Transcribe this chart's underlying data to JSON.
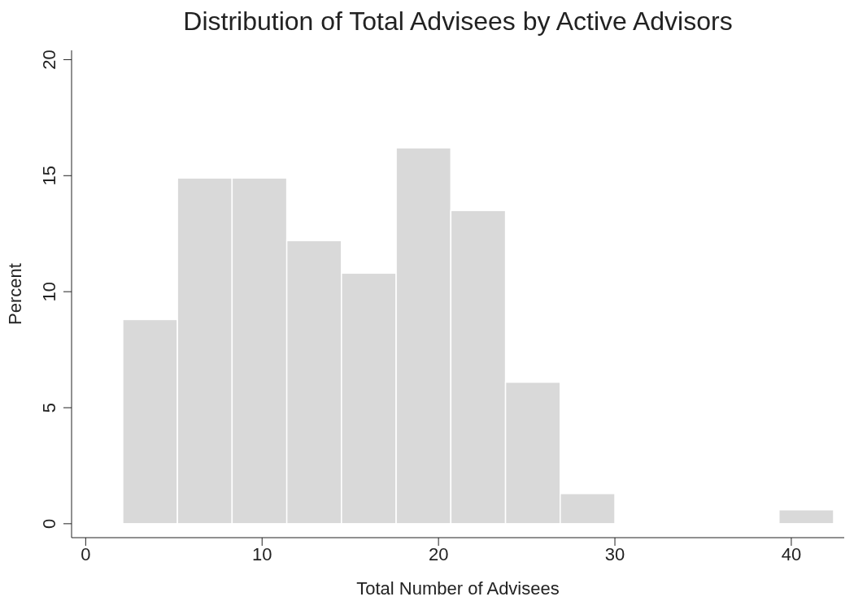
{
  "chart_data": {
    "type": "histogram",
    "title": "Distribution of Total Advisees by Active Advisors",
    "xlabel": "Total Number of Advisees",
    "ylabel": "Percent",
    "bins": [
      2.1,
      5.2,
      8.3,
      11.4,
      14.5,
      17.6,
      20.7,
      23.8,
      26.9,
      30,
      33.1,
      36.2,
      39.3,
      42.4
    ],
    "values": [
      8.8,
      14.9,
      14.9,
      12.2,
      10.8,
      16.2,
      13.5,
      6.1,
      1.3,
      0,
      0,
      0,
      0.6
    ],
    "color": "#d9d9d9",
    "xlim": [
      -0.8,
      43
    ],
    "xticks": [
      0,
      10,
      20,
      30,
      40
    ],
    "ylim": [
      -0.6,
      20.4
    ],
    "yticks": [
      0,
      5,
      10,
      15,
      20
    ],
    "grid": false
  }
}
